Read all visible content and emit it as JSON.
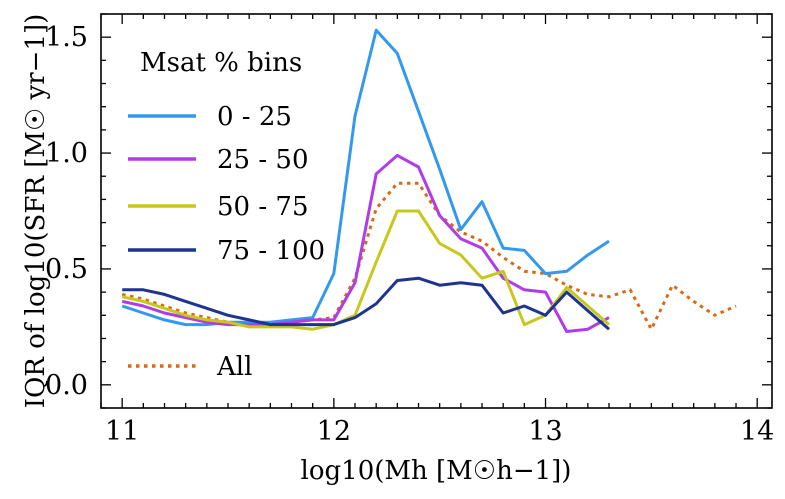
{
  "chart_data": {
    "type": "line",
    "title": "",
    "xlabel": "log10(Mh [M☉h−1])",
    "ylabel": "IQR of log10(SFR [M☉ yr−1])",
    "xlim": [
      10.9,
      14.07
    ],
    "ylim": [
      -0.1,
      1.6
    ],
    "xticks": [
      11,
      12,
      13,
      14
    ],
    "yticks": [
      0.0,
      0.5,
      1.0,
      1.5
    ],
    "xtick_labels": [
      "11",
      "12",
      "13",
      "14"
    ],
    "ytick_labels": [
      "0.0",
      "0.5",
      "1.0",
      "1.5"
    ],
    "legend": {
      "placement": "top-left",
      "title": "Msat % bins"
    },
    "series": [
      {
        "name": "0 - 25",
        "color": "#3399ee",
        "style": "solid",
        "x": [
          11.0,
          11.1,
          11.2,
          11.3,
          11.4,
          11.5,
          11.6,
          11.7,
          11.8,
          11.9,
          12.0,
          12.1,
          12.2,
          12.3,
          12.4,
          12.5,
          12.6,
          12.7,
          12.8,
          12.9,
          13.0,
          13.1,
          13.2,
          13.3
        ],
        "y": [
          0.34,
          0.31,
          0.28,
          0.26,
          0.26,
          0.27,
          0.27,
          0.27,
          0.28,
          0.29,
          0.48,
          1.16,
          1.53,
          1.43,
          1.18,
          0.93,
          0.67,
          0.79,
          0.59,
          0.58,
          0.48,
          0.49,
          0.56,
          0.62
        ]
      },
      {
        "name": "25 - 50",
        "color": "#b03ce8",
        "style": "solid",
        "x": [
          11.0,
          11.1,
          11.2,
          11.3,
          11.4,
          11.5,
          11.6,
          11.7,
          11.8,
          11.9,
          12.0,
          12.1,
          12.2,
          12.3,
          12.4,
          12.5,
          12.6,
          12.7,
          12.8,
          12.9,
          13.0,
          13.1,
          13.2,
          13.3
        ],
        "y": [
          0.36,
          0.34,
          0.31,
          0.29,
          0.27,
          0.26,
          0.26,
          0.26,
          0.27,
          0.28,
          0.28,
          0.44,
          0.91,
          0.99,
          0.94,
          0.73,
          0.63,
          0.59,
          0.46,
          0.41,
          0.4,
          0.23,
          0.24,
          0.29
        ]
      },
      {
        "name": "50 - 75",
        "color": "#c8c81c",
        "style": "solid",
        "x": [
          11.0,
          11.1,
          11.2,
          11.3,
          11.4,
          11.5,
          11.6,
          11.7,
          11.8,
          11.9,
          12.0,
          12.1,
          12.2,
          12.3,
          12.4,
          12.5,
          12.6,
          12.7,
          12.8,
          12.9,
          13.0,
          13.1,
          13.2,
          13.3
        ],
        "y": [
          0.38,
          0.36,
          0.33,
          0.3,
          0.28,
          0.27,
          0.25,
          0.25,
          0.25,
          0.24,
          0.26,
          0.3,
          0.53,
          0.75,
          0.75,
          0.61,
          0.56,
          0.46,
          0.49,
          0.26,
          0.3,
          0.42,
          0.34,
          0.26
        ]
      },
      {
        "name": "75 - 100",
        "color": "#1f3390",
        "style": "solid",
        "x": [
          11.0,
          11.1,
          11.2,
          11.3,
          11.4,
          11.5,
          11.6,
          11.7,
          11.8,
          11.9,
          12.0,
          12.1,
          12.2,
          12.3,
          12.4,
          12.5,
          12.6,
          12.7,
          12.8,
          12.9,
          13.0,
          13.1,
          13.2,
          13.3
        ],
        "y": [
          0.41,
          0.41,
          0.39,
          0.36,
          0.33,
          0.3,
          0.28,
          0.26,
          0.26,
          0.26,
          0.26,
          0.29,
          0.35,
          0.45,
          0.46,
          0.43,
          0.44,
          0.43,
          0.31,
          0.34,
          0.3,
          0.4,
          0.32,
          0.24
        ]
      },
      {
        "name": "All",
        "color": "#d96a14",
        "style": "dotted",
        "x": [
          11.0,
          11.1,
          11.2,
          11.3,
          11.4,
          11.5,
          11.6,
          11.7,
          11.8,
          11.9,
          12.0,
          12.1,
          12.2,
          12.3,
          12.4,
          12.5,
          12.6,
          12.7,
          12.8,
          12.9,
          13.0,
          13.1,
          13.2,
          13.3,
          13.4,
          13.5,
          13.6,
          13.7,
          13.8,
          13.9
        ],
        "y": [
          0.39,
          0.37,
          0.34,
          0.31,
          0.29,
          0.27,
          0.26,
          0.26,
          0.27,
          0.28,
          0.29,
          0.46,
          0.76,
          0.87,
          0.87,
          0.73,
          0.66,
          0.62,
          0.55,
          0.49,
          0.48,
          0.43,
          0.39,
          0.38,
          0.41,
          0.24,
          0.43,
          0.36,
          0.3,
          0.34
        ]
      }
    ]
  }
}
